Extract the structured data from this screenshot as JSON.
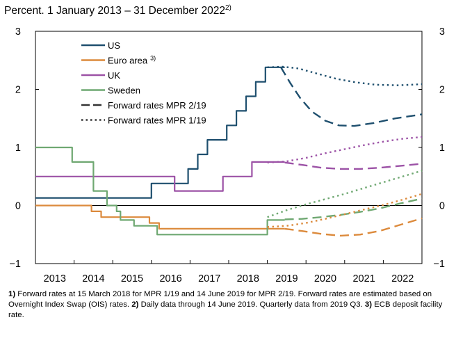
{
  "chart_data": {
    "type": "line",
    "title": "Percent. 1 January 2013 – 31 December 2022",
    "title_note": "2)",
    "ylim": [
      -1,
      3
    ],
    "xlim": [
      2013,
      2023
    ],
    "y_ticks": [
      "3",
      "2",
      "1",
      "0",
      "−1"
    ],
    "x_ticks": [
      "2013",
      "2014",
      "2015",
      "2016",
      "2017",
      "2018",
      "2019",
      "2020",
      "2021",
      "2022"
    ],
    "legend": [
      {
        "label": "US",
        "note": "",
        "color": "#1e4f6e",
        "style": "solid"
      },
      {
        "label": "Euro area",
        "note": "3)",
        "color": "#dc8a3c",
        "style": "solid"
      },
      {
        "label": "UK",
        "note": "",
        "color": "#9c52a6",
        "style": "solid"
      },
      {
        "label": "Sweden",
        "note": "",
        "color": "#6fa872",
        "style": "solid"
      },
      {
        "label": "Forward rates MPR 2/19",
        "note": "",
        "color": "#333333",
        "style": "dashed"
      },
      {
        "label": "Forward rates MPR 1/19",
        "note": "",
        "color": "#333333",
        "style": "dotted"
      }
    ],
    "series": [
      {
        "name": "US",
        "color": "#1e4f6e",
        "style": "solid",
        "points": [
          [
            2013.0,
            0.13
          ],
          [
            2016.0,
            0.13
          ],
          [
            2016.0,
            0.38
          ],
          [
            2016.95,
            0.38
          ],
          [
            2016.95,
            0.63
          ],
          [
            2017.2,
            0.63
          ],
          [
            2017.2,
            0.88
          ],
          [
            2017.45,
            0.88
          ],
          [
            2017.45,
            1.13
          ],
          [
            2017.95,
            1.13
          ],
          [
            2017.95,
            1.38
          ],
          [
            2018.2,
            1.38
          ],
          [
            2018.2,
            1.63
          ],
          [
            2018.45,
            1.63
          ],
          [
            2018.45,
            1.88
          ],
          [
            2018.7,
            1.88
          ],
          [
            2018.7,
            2.13
          ],
          [
            2018.95,
            2.13
          ],
          [
            2018.95,
            2.38
          ],
          [
            2019.45,
            2.38
          ]
        ]
      },
      {
        "name": "Euro area",
        "color": "#dc8a3c",
        "style": "solid",
        "points": [
          [
            2013.0,
            0.0
          ],
          [
            2014.45,
            0.0
          ],
          [
            2014.45,
            -0.1
          ],
          [
            2014.7,
            -0.1
          ],
          [
            2014.7,
            -0.2
          ],
          [
            2015.95,
            -0.2
          ],
          [
            2015.95,
            -0.3
          ],
          [
            2016.2,
            -0.3
          ],
          [
            2016.2,
            -0.4
          ],
          [
            2019.45,
            -0.4
          ]
        ]
      },
      {
        "name": "UK",
        "color": "#9c52a6",
        "style": "solid",
        "points": [
          [
            2013.0,
            0.5
          ],
          [
            2016.6,
            0.5
          ],
          [
            2016.6,
            0.25
          ],
          [
            2017.85,
            0.25
          ],
          [
            2017.85,
            0.5
          ],
          [
            2018.6,
            0.5
          ],
          [
            2018.6,
            0.75
          ],
          [
            2019.45,
            0.75
          ]
        ]
      },
      {
        "name": "Sweden",
        "color": "#6fa872",
        "style": "solid",
        "points": [
          [
            2013.0,
            1.0
          ],
          [
            2013.95,
            1.0
          ],
          [
            2013.95,
            0.75
          ],
          [
            2014.5,
            0.75
          ],
          [
            2014.5,
            0.25
          ],
          [
            2014.85,
            0.25
          ],
          [
            2014.85,
            0.0
          ],
          [
            2015.1,
            0.0
          ],
          [
            2015.1,
            -0.1
          ],
          [
            2015.2,
            -0.1
          ],
          [
            2015.2,
            -0.25
          ],
          [
            2015.55,
            -0.25
          ],
          [
            2015.55,
            -0.35
          ],
          [
            2016.15,
            -0.35
          ],
          [
            2016.15,
            -0.5
          ],
          [
            2019.0,
            -0.5
          ],
          [
            2019.0,
            -0.25
          ],
          [
            2019.45,
            -0.25
          ]
        ]
      },
      {
        "name": "US forward MPR 2/19",
        "color": "#1e4f6e",
        "style": "dashed",
        "points": [
          [
            2019.35,
            2.38
          ],
          [
            2019.6,
            2.1
          ],
          [
            2019.85,
            1.85
          ],
          [
            2020.15,
            1.62
          ],
          [
            2020.5,
            1.46
          ],
          [
            2020.85,
            1.38
          ],
          [
            2021.25,
            1.37
          ],
          [
            2021.75,
            1.42
          ],
          [
            2022.3,
            1.5
          ],
          [
            2023.0,
            1.57
          ]
        ]
      },
      {
        "name": "US forward MPR 1/19",
        "color": "#1e4f6e",
        "style": "dotted",
        "points": [
          [
            2019.0,
            2.38
          ],
          [
            2019.4,
            2.39
          ],
          [
            2019.8,
            2.36
          ],
          [
            2020.3,
            2.27
          ],
          [
            2020.8,
            2.18
          ],
          [
            2021.3,
            2.12
          ],
          [
            2021.8,
            2.08
          ],
          [
            2022.4,
            2.07
          ],
          [
            2023.0,
            2.09
          ]
        ]
      },
      {
        "name": "UK forward MPR 2/19",
        "color": "#9c52a6",
        "style": "dashed",
        "points": [
          [
            2019.45,
            0.74
          ],
          [
            2019.9,
            0.7
          ],
          [
            2020.4,
            0.65
          ],
          [
            2020.9,
            0.63
          ],
          [
            2021.4,
            0.63
          ],
          [
            2021.9,
            0.65
          ],
          [
            2022.4,
            0.68
          ],
          [
            2023.0,
            0.72
          ]
        ]
      },
      {
        "name": "UK forward MPR 1/19",
        "color": "#9c52a6",
        "style": "dotted",
        "points": [
          [
            2019.0,
            0.74
          ],
          [
            2019.5,
            0.76
          ],
          [
            2020.0,
            0.82
          ],
          [
            2020.5,
            0.9
          ],
          [
            2021.0,
            0.97
          ],
          [
            2021.5,
            1.04
          ],
          [
            2022.0,
            1.1
          ],
          [
            2022.5,
            1.15
          ],
          [
            2023.0,
            1.18
          ]
        ]
      },
      {
        "name": "Sweden forward MPR 2/19",
        "color": "#6fa872",
        "style": "dashed",
        "points": [
          [
            2019.45,
            -0.24
          ],
          [
            2019.9,
            -0.23
          ],
          [
            2020.4,
            -0.2
          ],
          [
            2020.9,
            -0.16
          ],
          [
            2021.4,
            -0.11
          ],
          [
            2021.9,
            -0.05
          ],
          [
            2022.4,
            0.03
          ],
          [
            2023.0,
            0.12
          ]
        ]
      },
      {
        "name": "Sweden forward MPR 1/19",
        "color": "#6fa872",
        "style": "dotted",
        "points": [
          [
            2019.0,
            -0.2
          ],
          [
            2019.5,
            -0.08
          ],
          [
            2020.0,
            0.02
          ],
          [
            2020.5,
            0.11
          ],
          [
            2021.0,
            0.2
          ],
          [
            2021.5,
            0.3
          ],
          [
            2022.0,
            0.4
          ],
          [
            2022.5,
            0.5
          ],
          [
            2023.0,
            0.6
          ]
        ]
      },
      {
        "name": "Euro area forward MPR 2/19",
        "color": "#dc8a3c",
        "style": "dashed",
        "points": [
          [
            2019.45,
            -0.4
          ],
          [
            2019.9,
            -0.44
          ],
          [
            2020.4,
            -0.49
          ],
          [
            2020.9,
            -0.52
          ],
          [
            2021.4,
            -0.5
          ],
          [
            2021.9,
            -0.44
          ],
          [
            2022.4,
            -0.34
          ],
          [
            2023.0,
            -0.22
          ]
        ]
      },
      {
        "name": "Euro area forward MPR 1/19",
        "color": "#dc8a3c",
        "style": "dotted",
        "points": [
          [
            2019.0,
            -0.37
          ],
          [
            2019.5,
            -0.35
          ],
          [
            2020.0,
            -0.3
          ],
          [
            2020.5,
            -0.23
          ],
          [
            2021.0,
            -0.15
          ],
          [
            2021.5,
            -0.07
          ],
          [
            2022.0,
            0.01
          ],
          [
            2022.5,
            0.1
          ],
          [
            2023.0,
            0.2
          ]
        ]
      }
    ]
  },
  "footnotes": {
    "n1": "1)",
    "t1": " Forward rates at 15 March 2018 for MPR 1/19 and 14 June 2019 for MPR 2/19. Forward rates are estimated based on Overnight Index Swap (OIS) rates. ",
    "n2": "2)",
    "t2": " Daily data through 14 June 2019. Quarterly data from 2019 Q3. ",
    "n3": "3)",
    "t3": " ECB deposit facility rate."
  }
}
